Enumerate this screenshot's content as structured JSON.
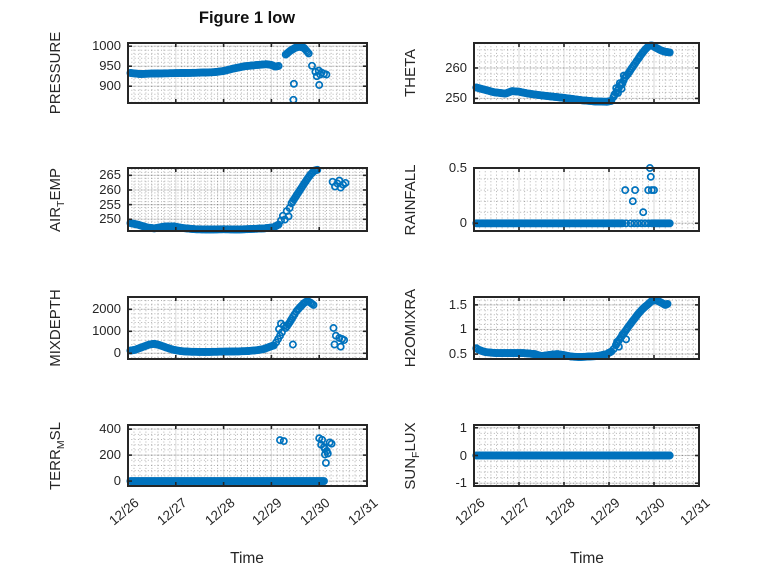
{
  "figure": {
    "title": "Figure 1 low",
    "background": "#ffffff"
  },
  "style": {
    "marker_color": "#0072BD",
    "axis_color": "#262626",
    "text_color": "#262626",
    "major_grid_color": "rgba(0,0,0,0.12)",
    "minor_grid_color": "rgba(0,0,0,0.30)",
    "marker_radius": 3.1,
    "marker_stroke_width": 1.7,
    "marker_step_days": 0.028
  },
  "x_axis": {
    "label": "Time",
    "tick_labels": [
      "12/26",
      "12/27",
      "12/28",
      "12/29",
      "12/30",
      "12/31"
    ],
    "tick_values": [
      0,
      1,
      2,
      3,
      4,
      5
    ],
    "xlim": [
      0,
      5
    ],
    "minor_step": 0.125,
    "grid": "on",
    "minor_grid": "dotted"
  },
  "chart_data": [
    {
      "id": "pressure",
      "type": "scatter",
      "row": 0,
      "col": 0,
      "ylabel_segments": [
        {
          "t": "PRESSURE"
        }
      ],
      "ylim": [
        858,
        1008
      ],
      "yticks": [
        900,
        950,
        1000
      ],
      "ytick_labels": [
        "900",
        "950",
        "1000"
      ],
      "y_minor_step": 10,
      "line_segments": [
        [
          [
            0.05,
            933
          ],
          [
            0.25,
            930.5
          ],
          [
            0.5,
            931.5
          ],
          [
            0.9,
            932.5
          ],
          [
            1.4,
            933.5
          ],
          [
            1.8,
            935
          ],
          [
            2.0,
            938
          ],
          [
            2.2,
            944
          ],
          [
            2.45,
            950
          ],
          [
            2.7,
            953
          ],
          [
            2.9,
            955
          ],
          [
            3.0,
            953
          ],
          [
            3.08,
            949
          ],
          [
            3.15,
            950.5
          ]
        ],
        [
          [
            3.3,
            979
          ],
          [
            3.4,
            989
          ],
          [
            3.5,
            996
          ],
          [
            3.58,
            999
          ],
          [
            3.68,
            996
          ],
          [
            3.78,
            982
          ]
        ]
      ],
      "scatter_points": [
        [
          3.47,
          906
        ],
        [
          3.46,
          866
        ],
        [
          3.85,
          951
        ],
        [
          3.92,
          936
        ],
        [
          3.95,
          925
        ],
        [
          3.99,
          939
        ],
        [
          4.02,
          929
        ],
        [
          4.05,
          934
        ],
        [
          4.0,
          903
        ],
        [
          4.1,
          931
        ],
        [
          4.15,
          929
        ]
      ]
    },
    {
      "id": "theta",
      "type": "scatter",
      "row": 0,
      "col": 1,
      "ylabel_segments": [
        {
          "t": "THETA"
        }
      ],
      "ylim": [
        248.5,
        268.2
      ],
      "yticks": [
        250,
        260
      ],
      "ytick_labels": [
        "250",
        "260"
      ],
      "y_minor_step": 2,
      "line_segments": [
        [
          [
            0.05,
            253.6
          ],
          [
            0.2,
            253
          ],
          [
            0.45,
            252
          ],
          [
            0.7,
            251.6
          ],
          [
            0.85,
            252.4
          ],
          [
            1.0,
            252.2
          ],
          [
            1.2,
            251.6
          ],
          [
            1.5,
            251
          ],
          [
            1.8,
            250.5
          ],
          [
            2.1,
            250
          ],
          [
            2.4,
            249.4
          ],
          [
            2.7,
            249
          ],
          [
            2.95,
            248.9
          ],
          [
            3.05,
            249.2
          ]
        ],
        [
          [
            3.1,
            250.5
          ],
          [
            3.18,
            252.5
          ],
          [
            3.25,
            254.2
          ],
          [
            3.3,
            255
          ],
          [
            3.35,
            256.8
          ],
          [
            3.42,
            258
          ],
          [
            3.5,
            259.8
          ],
          [
            3.58,
            261.5
          ],
          [
            3.65,
            263
          ],
          [
            3.72,
            264.5
          ],
          [
            3.8,
            266
          ],
          [
            3.88,
            267.2
          ],
          [
            3.95,
            267.4
          ],
          [
            4.05,
            266.6
          ],
          [
            4.15,
            265.8
          ],
          [
            4.25,
            265.3
          ],
          [
            4.35,
            265.1
          ]
        ]
      ],
      "scatter_points": [
        [
          3.12,
          251.3
        ],
        [
          3.16,
          253.4
        ],
        [
          3.2,
          251.8
        ],
        [
          3.24,
          255
        ],
        [
          3.28,
          253.2
        ],
        [
          3.33,
          257.5
        ]
      ]
    },
    {
      "id": "air-temp",
      "type": "scatter",
      "row": 1,
      "col": 0,
      "ylabel_segments": [
        {
          "t": "AIR"
        },
        {
          "t": "T",
          "sub": true
        },
        {
          "t": "EMP"
        }
      ],
      "ylim": [
        246,
        267.5
      ],
      "yticks": [
        250,
        255,
        260,
        265
      ],
      "ytick_labels": [
        "250",
        "255",
        "260",
        "265"
      ],
      "y_minor_step": 1,
      "line_segments": [
        [
          [
            0.05,
            248.7
          ],
          [
            0.2,
            248.2
          ],
          [
            0.4,
            247.2
          ],
          [
            0.55,
            246.9
          ],
          [
            0.75,
            247.5
          ],
          [
            0.95,
            247.6
          ],
          [
            1.15,
            247
          ],
          [
            1.4,
            246.6
          ],
          [
            1.7,
            246.5
          ],
          [
            2.0,
            246.6
          ],
          [
            2.3,
            246.5
          ],
          [
            2.6,
            246.7
          ],
          [
            2.85,
            246.9
          ],
          [
            3.05,
            247.3
          ],
          [
            3.15,
            248.2
          ]
        ],
        [
          [
            3.42,
            255.5
          ],
          [
            3.5,
            257.5
          ],
          [
            3.58,
            259.5
          ],
          [
            3.66,
            261.5
          ],
          [
            3.74,
            263.5
          ],
          [
            3.82,
            265.3
          ],
          [
            3.9,
            266.6
          ],
          [
            3.96,
            266.9
          ]
        ]
      ],
      "scatter_points": [
        [
          3.2,
          249.6
        ],
        [
          3.24,
          251.2
        ],
        [
          3.28,
          249.9
        ],
        [
          3.32,
          252.8
        ],
        [
          3.36,
          251
        ],
        [
          3.38,
          253.8
        ],
        [
          4.28,
          262.8
        ],
        [
          4.33,
          261.2
        ],
        [
          4.38,
          262.2
        ],
        [
          4.42,
          263.2
        ],
        [
          4.45,
          260.8
        ],
        [
          4.5,
          261.8
        ],
        [
          4.55,
          262.4
        ]
      ]
    },
    {
      "id": "rainfall",
      "type": "scatter",
      "row": 1,
      "col": 1,
      "ylabel_segments": [
        {
          "t": "RAINFALL"
        }
      ],
      "ylim": [
        -0.07,
        0.5
      ],
      "yticks": [
        0,
        0.5
      ],
      "ytick_labels": [
        "0",
        "0.5"
      ],
      "y_minor_step": 0.1,
      "line_segments": [
        [
          [
            0.05,
            0
          ],
          [
            3.3,
            0
          ]
        ],
        [
          [
            3.95,
            0
          ],
          [
            4.35,
            0
          ]
        ]
      ],
      "scatter_points": [
        [
          3.38,
          0
        ],
        [
          3.48,
          0
        ],
        [
          3.56,
          0
        ],
        [
          3.64,
          0
        ],
        [
          3.72,
          0
        ],
        [
          3.8,
          0
        ],
        [
          3.88,
          0
        ],
        [
          3.36,
          0.3
        ],
        [
          3.58,
          0.3
        ],
        [
          3.87,
          0.3
        ],
        [
          3.95,
          0.3
        ],
        [
          4.0,
          0.3
        ],
        [
          3.53,
          0.2
        ],
        [
          3.76,
          0.1
        ],
        [
          3.91,
          0.5
        ],
        [
          3.93,
          0.42
        ]
      ]
    },
    {
      "id": "mixdepth",
      "type": "scatter",
      "row": 2,
      "col": 0,
      "ylabel_segments": [
        {
          "t": "MIXDEPTH"
        }
      ],
      "ylim": [
        -260,
        2560
      ],
      "yticks": [
        0,
        1000,
        2000
      ],
      "ytick_labels": [
        "0",
        "1000",
        "2000"
      ],
      "y_minor_step": 200,
      "line_segments": [
        [
          [
            0.05,
            120
          ],
          [
            0.15,
            160
          ],
          [
            0.3,
            280
          ],
          [
            0.45,
            400
          ],
          [
            0.55,
            430
          ],
          [
            0.65,
            380
          ],
          [
            0.8,
            260
          ],
          [
            0.95,
            160
          ],
          [
            1.1,
            100
          ],
          [
            1.3,
            70
          ],
          [
            1.6,
            60
          ],
          [
            1.9,
            70
          ],
          [
            2.2,
            80
          ],
          [
            2.5,
            100
          ],
          [
            2.7,
            140
          ],
          [
            2.85,
            200
          ],
          [
            2.95,
            280
          ],
          [
            3.05,
            360
          ]
        ],
        [
          [
            3.3,
            1150
          ],
          [
            3.38,
            1400
          ],
          [
            3.45,
            1650
          ],
          [
            3.52,
            1900
          ],
          [
            3.6,
            2100
          ],
          [
            3.68,
            2280
          ],
          [
            3.75,
            2380
          ],
          [
            3.82,
            2300
          ],
          [
            3.88,
            2200
          ]
        ]
      ],
      "scatter_points": [
        [
          3.1,
          500
        ],
        [
          3.14,
          650
        ],
        [
          3.18,
          800
        ],
        [
          3.22,
          950
        ],
        [
          3.16,
          1100
        ],
        [
          3.26,
          1250
        ],
        [
          3.2,
          1350
        ],
        [
          3.45,
          400
        ],
        [
          4.3,
          1150
        ],
        [
          4.35,
          800
        ],
        [
          4.32,
          400
        ],
        [
          4.42,
          700
        ],
        [
          4.48,
          650
        ],
        [
          4.45,
          300
        ],
        [
          4.52,
          600
        ]
      ]
    },
    {
      "id": "h2omixra",
      "type": "scatter",
      "row": 2,
      "col": 1,
      "ylabel_segments": [
        {
          "t": "H2OMIXRA"
        }
      ],
      "ylim": [
        0.4,
        1.66
      ],
      "yticks": [
        0.5,
        1,
        1.5
      ],
      "ytick_labels": [
        "0.5",
        "1",
        "1.5"
      ],
      "y_minor_step": 0.1,
      "line_segments": [
        [
          [
            0.05,
            0.62
          ],
          [
            0.12,
            0.58
          ],
          [
            0.25,
            0.54
          ],
          [
            0.5,
            0.52
          ],
          [
            0.8,
            0.52
          ],
          [
            1.1,
            0.52
          ],
          [
            1.35,
            0.5
          ],
          [
            1.5,
            0.46
          ],
          [
            1.65,
            0.48
          ],
          [
            1.85,
            0.5
          ],
          [
            2.0,
            0.48
          ],
          [
            2.15,
            0.45
          ],
          [
            2.35,
            0.44
          ],
          [
            2.55,
            0.45
          ],
          [
            2.75,
            0.46
          ],
          [
            2.95,
            0.5
          ],
          [
            3.05,
            0.55
          ]
        ],
        [
          [
            3.15,
            0.68
          ],
          [
            3.25,
            0.82
          ],
          [
            3.35,
            0.95
          ],
          [
            3.45,
            1.08
          ],
          [
            3.55,
            1.2
          ],
          [
            3.65,
            1.32
          ],
          [
            3.75,
            1.42
          ],
          [
            3.85,
            1.5
          ],
          [
            3.95,
            1.58
          ],
          [
            4.05,
            1.6
          ],
          [
            4.15,
            1.55
          ],
          [
            4.25,
            1.5
          ],
          [
            4.3,
            1.52
          ]
        ]
      ],
      "scatter_points": [
        [
          3.1,
          0.6
        ],
        [
          3.18,
          0.75
        ],
        [
          3.22,
          0.65
        ],
        [
          3.3,
          0.9
        ],
        [
          3.38,
          0.8
        ]
      ]
    },
    {
      "id": "terr-msl",
      "type": "scatter",
      "row": 3,
      "col": 0,
      "ylabel_segments": [
        {
          "t": "TERR"
        },
        {
          "t": "M",
          "sub": true
        },
        {
          "t": "SL"
        }
      ],
      "ylim": [
        -38,
        432
      ],
      "yticks": [
        0,
        200,
        400
      ],
      "ytick_labels": [
        "0",
        "200",
        "400"
      ],
      "y_minor_step": 40,
      "line_segments": [
        [
          [
            0.05,
            0
          ],
          [
            4.1,
            0
          ]
        ]
      ],
      "scatter_points": [
        [
          3.18,
          316
        ],
        [
          3.26,
          308
        ],
        [
          4.0,
          330
        ],
        [
          4.06,
          318
        ],
        [
          4.04,
          280
        ],
        [
          4.1,
          262
        ],
        [
          4.12,
          248
        ],
        [
          4.16,
          232
        ],
        [
          4.12,
          205
        ],
        [
          4.18,
          212
        ],
        [
          4.22,
          298
        ],
        [
          4.26,
          288
        ],
        [
          4.14,
          140
        ]
      ]
    },
    {
      "id": "sun-flux",
      "type": "scatter",
      "row": 3,
      "col": 1,
      "ylabel_segments": [
        {
          "t": "SUN"
        },
        {
          "t": "F",
          "sub": true
        },
        {
          "t": "LUX"
        }
      ],
      "ylim": [
        -1.1,
        1.1
      ],
      "yticks": [
        -1,
        0,
        1
      ],
      "ytick_labels": [
        "-1",
        "0",
        "1"
      ],
      "y_minor_step": 0.2,
      "line_segments": [
        [
          [
            0.05,
            0
          ],
          [
            4.35,
            0
          ]
        ]
      ],
      "scatter_points": []
    }
  ]
}
